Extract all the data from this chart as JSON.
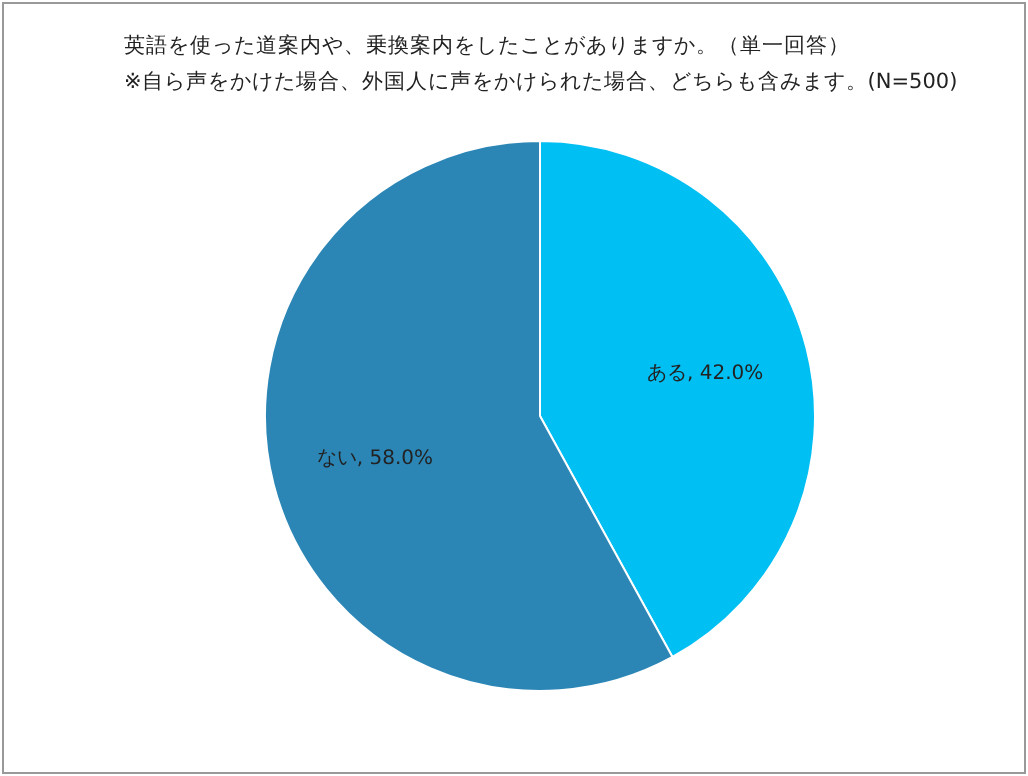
{
  "chart_data": {
    "type": "pie",
    "title": "英語を使った道案内や、乗換案内をしたことがありますか。（単一回答）",
    "subtitle": "※自ら声をかけた場合、外国人に声をかけられた場合、どちらも含みます。(N=500)",
    "categories": [
      "ある",
      "ない"
    ],
    "values": [
      42.0,
      58.0
    ],
    "colors": [
      "#00bff3",
      "#2b86b6"
    ],
    "value_labels": [
      "42.0%",
      "58.0%"
    ],
    "legend": false
  }
}
